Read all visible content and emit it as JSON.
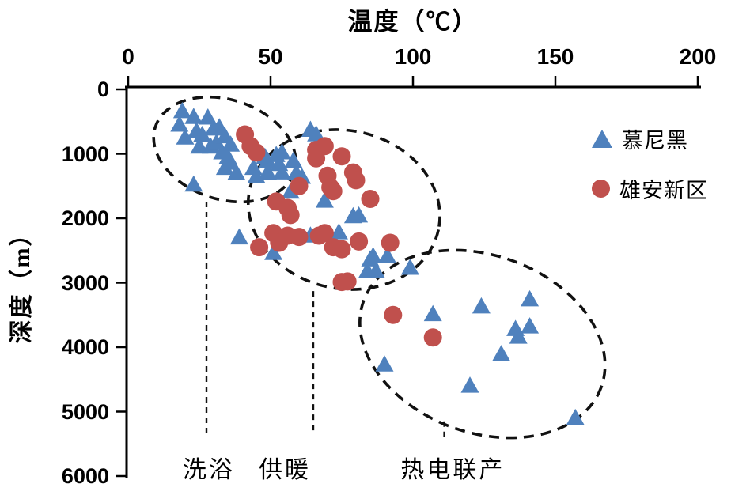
{
  "colors": {
    "munich_blue": "#4F81BD",
    "xiongan_red": "#C0504D",
    "axis_black": "#000000",
    "annotation_black": "#111111",
    "background": "#ffffff"
  },
  "chart_data": {
    "type": "scatter",
    "title": "温度（℃）",
    "xlabel": "温度（℃）",
    "ylabel": "深度（m）",
    "x_axis_position": "top",
    "y_axis_inverted": true,
    "xlim": [
      0,
      200
    ],
    "ylim": [
      0,
      6000
    ],
    "x_ticks": [
      "0",
      "50",
      "100",
      "150",
      "200"
    ],
    "y_ticks": [
      "0",
      "1000",
      "2000",
      "3000",
      "4000",
      "5000",
      "6000"
    ],
    "grid": false,
    "legend_position": "inside-upper-right",
    "series": [
      {
        "name": "慕尼黑",
        "marker": "triangle",
        "color": "#4F81BD",
        "points": [
          [
            19,
            330
          ],
          [
            18,
            540
          ],
          [
            23,
            420
          ],
          [
            28,
            430
          ],
          [
            20,
            740
          ],
          [
            24,
            640
          ],
          [
            26,
            700
          ],
          [
            30,
            600
          ],
          [
            32,
            580
          ],
          [
            25,
            880
          ],
          [
            29,
            880
          ],
          [
            31,
            820
          ],
          [
            34,
            720
          ],
          [
            36,
            850
          ],
          [
            33,
            970
          ],
          [
            35,
            1040
          ],
          [
            36,
            1130
          ],
          [
            34,
            1210
          ],
          [
            23,
            1470
          ],
          [
            38,
            1290
          ],
          [
            44,
            1210
          ],
          [
            48,
            1040
          ],
          [
            49,
            1290
          ],
          [
            64,
            620
          ],
          [
            66,
            690
          ],
          [
            52,
            1010
          ],
          [
            54,
            970
          ],
          [
            49,
            1100
          ],
          [
            53,
            1150
          ],
          [
            58,
            1100
          ],
          [
            49,
            1280
          ],
          [
            54,
            1280
          ],
          [
            59,
            1290
          ],
          [
            45,
            1340
          ],
          [
            61,
            1350
          ],
          [
            57,
            1580
          ],
          [
            69,
            1720
          ],
          [
            81,
            1950
          ],
          [
            79,
            1960
          ],
          [
            39,
            2290
          ],
          [
            51,
            2530
          ],
          [
            64,
            2260
          ],
          [
            74,
            2210
          ],
          [
            85,
            2630
          ],
          [
            86,
            2580
          ],
          [
            91,
            2580
          ],
          [
            84,
            2810
          ],
          [
            87,
            2810
          ],
          [
            99,
            2760
          ],
          [
            107,
            3480
          ],
          [
            124,
            3360
          ],
          [
            141,
            3250
          ],
          [
            136,
            3710
          ],
          [
            141,
            3670
          ],
          [
            137,
            3830
          ],
          [
            131,
            4100
          ],
          [
            90,
            4260
          ],
          [
            120,
            4590
          ],
          [
            157,
            5090
          ]
        ]
      },
      {
        "name": "雄安新区",
        "marker": "circle",
        "color": "#C0504D",
        "points": [
          [
            41,
            700
          ],
          [
            43,
            880
          ],
          [
            45,
            980
          ],
          [
            66,
            940
          ],
          [
            69,
            880
          ],
          [
            75,
            1040
          ],
          [
            66,
            1070
          ],
          [
            70,
            1340
          ],
          [
            71,
            1520
          ],
          [
            79,
            1290
          ],
          [
            80,
            1410
          ],
          [
            72,
            1580
          ],
          [
            60,
            1500
          ],
          [
            52,
            1740
          ],
          [
            56,
            1840
          ],
          [
            85,
            1700
          ],
          [
            57,
            1950
          ],
          [
            46,
            2450
          ],
          [
            51,
            2230
          ],
          [
            53,
            2380
          ],
          [
            56,
            2270
          ],
          [
            60,
            2290
          ],
          [
            67,
            2270
          ],
          [
            69,
            2230
          ],
          [
            72,
            2450
          ],
          [
            75,
            2480
          ],
          [
            81,
            2360
          ],
          [
            92,
            2380
          ],
          [
            75,
            2990
          ],
          [
            77,
            2980
          ],
          [
            93,
            3500
          ],
          [
            107,
            3850
          ]
        ]
      }
    ],
    "zones": [
      {
        "label": "洗浴",
        "label_t": 28.3,
        "label_d": 5860,
        "ellipse": {
          "t": 33.9,
          "d": 933,
          "rt": 25.6,
          "rd": 773,
          "rot": 18
        },
        "line": {
          "t": 27.5,
          "d1": 1742,
          "d2": 5400
        }
      },
      {
        "label": "供暖",
        "label_t": 55,
        "label_d": 5860,
        "ellipse": {
          "t": 75.8,
          "d": 1865,
          "rt": 33.9,
          "rd": 1227,
          "rot": 12
        },
        "line": {
          "t": 65,
          "d1": 3130,
          "d2": 5340
        }
      },
      {
        "label": "热电联产",
        "label_t": 114,
        "label_d": 5860,
        "ellipse": {
          "t": 124.4,
          "d": 3951,
          "rt": 44.4,
          "rd": 1374,
          "rot": 20
        },
        "line": {
          "t": 111,
          "d1": 5150,
          "d2": 5460
        }
      }
    ]
  }
}
